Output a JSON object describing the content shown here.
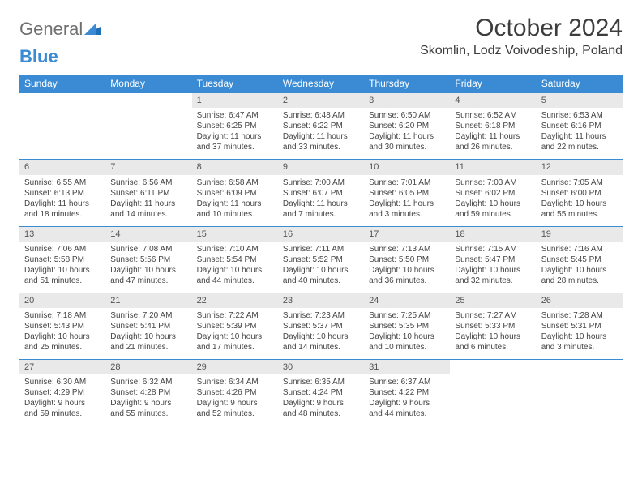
{
  "logo": {
    "general": "General",
    "blue": "Blue"
  },
  "title": "October 2024",
  "location": "Skomlin, Lodz Voivodeship, Poland",
  "colors": {
    "headerBg": "#3a8bd4",
    "headerText": "#ffffff",
    "dayNumBg": "#e9e9e9",
    "text": "#444444"
  },
  "dayHeaders": [
    "Sunday",
    "Monday",
    "Tuesday",
    "Wednesday",
    "Thursday",
    "Friday",
    "Saturday"
  ],
  "weeks": [
    [
      null,
      null,
      {
        "n": "1",
        "sr": "Sunrise: 6:47 AM",
        "ss": "Sunset: 6:25 PM",
        "dl": "Daylight: 11 hours and 37 minutes."
      },
      {
        "n": "2",
        "sr": "Sunrise: 6:48 AM",
        "ss": "Sunset: 6:22 PM",
        "dl": "Daylight: 11 hours and 33 minutes."
      },
      {
        "n": "3",
        "sr": "Sunrise: 6:50 AM",
        "ss": "Sunset: 6:20 PM",
        "dl": "Daylight: 11 hours and 30 minutes."
      },
      {
        "n": "4",
        "sr": "Sunrise: 6:52 AM",
        "ss": "Sunset: 6:18 PM",
        "dl": "Daylight: 11 hours and 26 minutes."
      },
      {
        "n": "5",
        "sr": "Sunrise: 6:53 AM",
        "ss": "Sunset: 6:16 PM",
        "dl": "Daylight: 11 hours and 22 minutes."
      }
    ],
    [
      {
        "n": "6",
        "sr": "Sunrise: 6:55 AM",
        "ss": "Sunset: 6:13 PM",
        "dl": "Daylight: 11 hours and 18 minutes."
      },
      {
        "n": "7",
        "sr": "Sunrise: 6:56 AM",
        "ss": "Sunset: 6:11 PM",
        "dl": "Daylight: 11 hours and 14 minutes."
      },
      {
        "n": "8",
        "sr": "Sunrise: 6:58 AM",
        "ss": "Sunset: 6:09 PM",
        "dl": "Daylight: 11 hours and 10 minutes."
      },
      {
        "n": "9",
        "sr": "Sunrise: 7:00 AM",
        "ss": "Sunset: 6:07 PM",
        "dl": "Daylight: 11 hours and 7 minutes."
      },
      {
        "n": "10",
        "sr": "Sunrise: 7:01 AM",
        "ss": "Sunset: 6:05 PM",
        "dl": "Daylight: 11 hours and 3 minutes."
      },
      {
        "n": "11",
        "sr": "Sunrise: 7:03 AM",
        "ss": "Sunset: 6:02 PM",
        "dl": "Daylight: 10 hours and 59 minutes."
      },
      {
        "n": "12",
        "sr": "Sunrise: 7:05 AM",
        "ss": "Sunset: 6:00 PM",
        "dl": "Daylight: 10 hours and 55 minutes."
      }
    ],
    [
      {
        "n": "13",
        "sr": "Sunrise: 7:06 AM",
        "ss": "Sunset: 5:58 PM",
        "dl": "Daylight: 10 hours and 51 minutes."
      },
      {
        "n": "14",
        "sr": "Sunrise: 7:08 AM",
        "ss": "Sunset: 5:56 PM",
        "dl": "Daylight: 10 hours and 47 minutes."
      },
      {
        "n": "15",
        "sr": "Sunrise: 7:10 AM",
        "ss": "Sunset: 5:54 PM",
        "dl": "Daylight: 10 hours and 44 minutes."
      },
      {
        "n": "16",
        "sr": "Sunrise: 7:11 AM",
        "ss": "Sunset: 5:52 PM",
        "dl": "Daylight: 10 hours and 40 minutes."
      },
      {
        "n": "17",
        "sr": "Sunrise: 7:13 AM",
        "ss": "Sunset: 5:50 PM",
        "dl": "Daylight: 10 hours and 36 minutes."
      },
      {
        "n": "18",
        "sr": "Sunrise: 7:15 AM",
        "ss": "Sunset: 5:47 PM",
        "dl": "Daylight: 10 hours and 32 minutes."
      },
      {
        "n": "19",
        "sr": "Sunrise: 7:16 AM",
        "ss": "Sunset: 5:45 PM",
        "dl": "Daylight: 10 hours and 28 minutes."
      }
    ],
    [
      {
        "n": "20",
        "sr": "Sunrise: 7:18 AM",
        "ss": "Sunset: 5:43 PM",
        "dl": "Daylight: 10 hours and 25 minutes."
      },
      {
        "n": "21",
        "sr": "Sunrise: 7:20 AM",
        "ss": "Sunset: 5:41 PM",
        "dl": "Daylight: 10 hours and 21 minutes."
      },
      {
        "n": "22",
        "sr": "Sunrise: 7:22 AM",
        "ss": "Sunset: 5:39 PM",
        "dl": "Daylight: 10 hours and 17 minutes."
      },
      {
        "n": "23",
        "sr": "Sunrise: 7:23 AM",
        "ss": "Sunset: 5:37 PM",
        "dl": "Daylight: 10 hours and 14 minutes."
      },
      {
        "n": "24",
        "sr": "Sunrise: 7:25 AM",
        "ss": "Sunset: 5:35 PM",
        "dl": "Daylight: 10 hours and 10 minutes."
      },
      {
        "n": "25",
        "sr": "Sunrise: 7:27 AM",
        "ss": "Sunset: 5:33 PM",
        "dl": "Daylight: 10 hours and 6 minutes."
      },
      {
        "n": "26",
        "sr": "Sunrise: 7:28 AM",
        "ss": "Sunset: 5:31 PM",
        "dl": "Daylight: 10 hours and 3 minutes."
      }
    ],
    [
      {
        "n": "27",
        "sr": "Sunrise: 6:30 AM",
        "ss": "Sunset: 4:29 PM",
        "dl": "Daylight: 9 hours and 59 minutes."
      },
      {
        "n": "28",
        "sr": "Sunrise: 6:32 AM",
        "ss": "Sunset: 4:28 PM",
        "dl": "Daylight: 9 hours and 55 minutes."
      },
      {
        "n": "29",
        "sr": "Sunrise: 6:34 AM",
        "ss": "Sunset: 4:26 PM",
        "dl": "Daylight: 9 hours and 52 minutes."
      },
      {
        "n": "30",
        "sr": "Sunrise: 6:35 AM",
        "ss": "Sunset: 4:24 PM",
        "dl": "Daylight: 9 hours and 48 minutes."
      },
      {
        "n": "31",
        "sr": "Sunrise: 6:37 AM",
        "ss": "Sunset: 4:22 PM",
        "dl": "Daylight: 9 hours and 44 minutes."
      },
      null,
      null
    ]
  ]
}
